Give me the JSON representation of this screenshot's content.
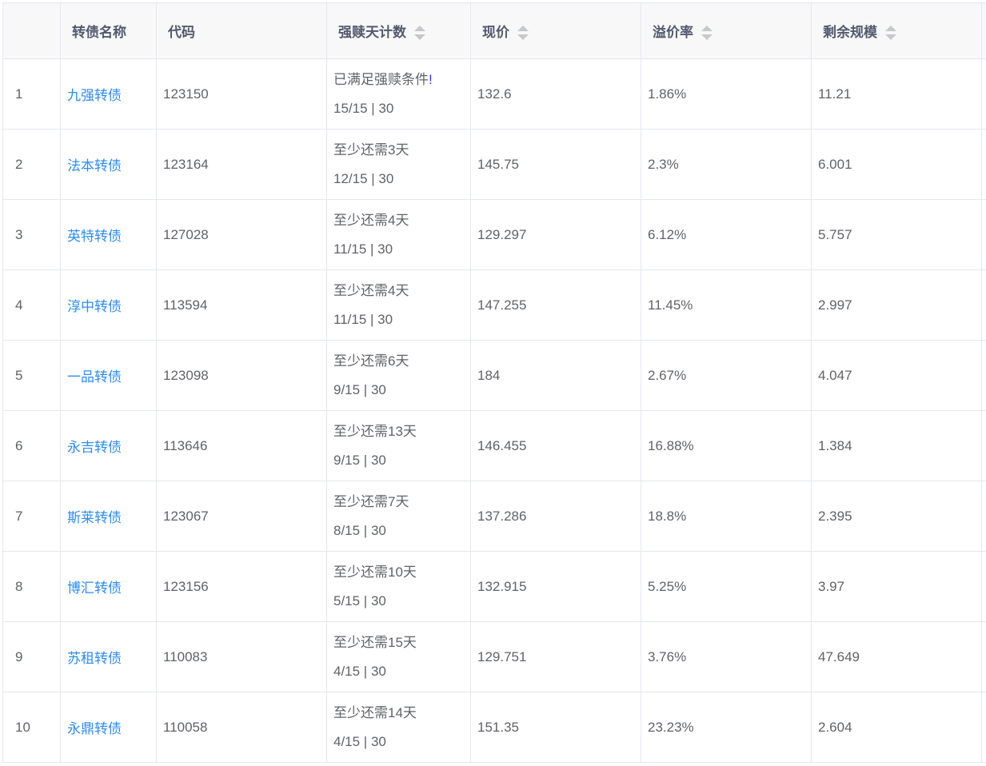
{
  "columns": [
    "",
    "转债名称",
    "代码",
    "强赎天计数",
    "现价",
    "溢价率",
    "剩余规模"
  ],
  "sortable": [
    false,
    false,
    false,
    true,
    true,
    true,
    true
  ],
  "rows": [
    {
      "idx": "1",
      "name": "九强转债",
      "code": "123150",
      "status": "已满足强赎条件",
      "bang": "!",
      "count": "15/15 | 30",
      "price": "132.6",
      "premium": "1.86%",
      "size": "11.21"
    },
    {
      "idx": "2",
      "name": "法本转债",
      "code": "123164",
      "status": "至少还需3天",
      "count": "12/15 | 30",
      "price": "145.75",
      "premium": "2.3%",
      "size": "6.001"
    },
    {
      "idx": "3",
      "name": "英特转债",
      "code": "127028",
      "status": "至少还需4天",
      "count": "11/15 | 30",
      "price": "129.297",
      "premium": "6.12%",
      "size": "5.757"
    },
    {
      "idx": "4",
      "name": "淳中转债",
      "code": "113594",
      "status": "至少还需4天",
      "count": "11/15 | 30",
      "price": "147.255",
      "premium": "11.45%",
      "size": "2.997"
    },
    {
      "idx": "5",
      "name": "一品转债",
      "code": "123098",
      "status": "至少还需6天",
      "count": "9/15 | 30",
      "price": "184",
      "premium": "2.67%",
      "size": "4.047"
    },
    {
      "idx": "6",
      "name": "永吉转债",
      "code": "113646",
      "status": "至少还需13天",
      "count": "9/15 | 30",
      "price": "146.455",
      "premium": "16.88%",
      "size": "1.384"
    },
    {
      "idx": "7",
      "name": "斯莱转债",
      "code": "123067",
      "status": "至少还需7天",
      "count": "8/15 | 30",
      "price": "137.286",
      "premium": "18.8%",
      "size": "2.395"
    },
    {
      "idx": "8",
      "name": "博汇转债",
      "code": "123156",
      "status": "至少还需10天",
      "count": "5/15 | 30",
      "price": "132.915",
      "premium": "5.25%",
      "size": "3.97"
    },
    {
      "idx": "9",
      "name": "苏租转债",
      "code": "110083",
      "status": "至少还需15天",
      "count": "4/15 | 30",
      "price": "129.751",
      "premium": "3.76%",
      "size": "47.649"
    },
    {
      "idx": "10",
      "name": "永鼎转债",
      "code": "110058",
      "status": "至少还需14天",
      "count": "4/15 | 30",
      "price": "151.35",
      "premium": "23.23%",
      "size": "2.604"
    }
  ]
}
